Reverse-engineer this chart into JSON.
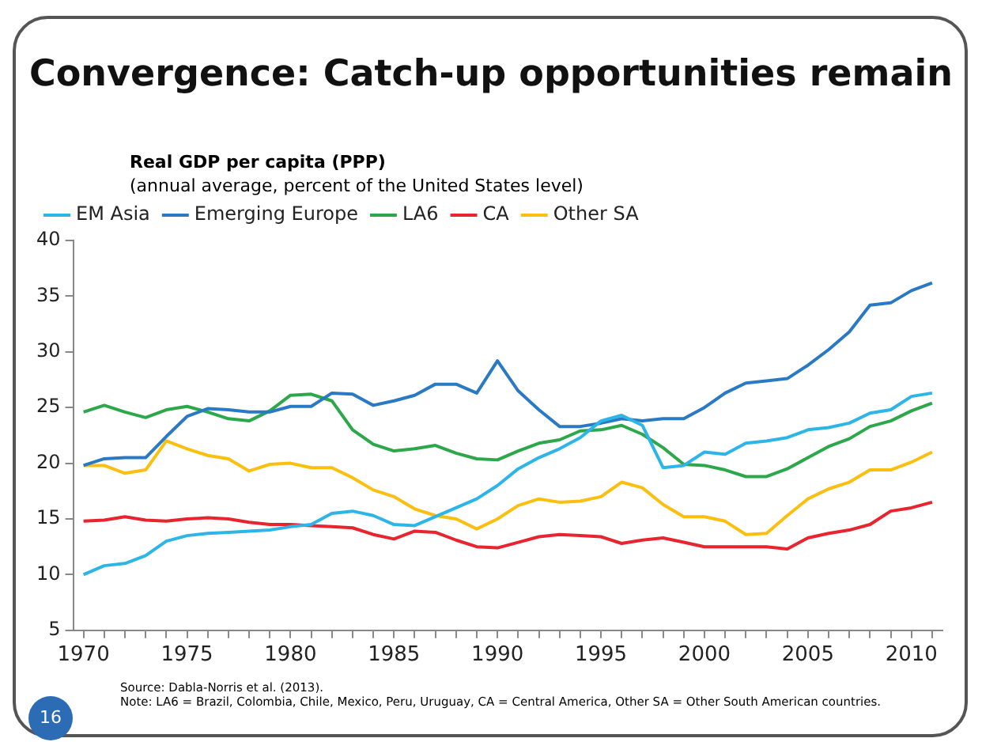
{
  "chart_data": {
    "type": "line",
    "title": "Convergence: Catch-up opportunities remain",
    "subtitle": "Real GDP per capita (PPP)",
    "ylabel": "(annual average, percent of the United States level)",
    "x": [
      1970,
      1971,
      1972,
      1973,
      1974,
      1975,
      1976,
      1977,
      1978,
      1979,
      1980,
      1981,
      1982,
      1983,
      1984,
      1985,
      1986,
      1987,
      1988,
      1989,
      1990,
      1991,
      1992,
      1993,
      1994,
      1995,
      1996,
      1997,
      1998,
      1999,
      2000,
      2001,
      2002,
      2003,
      2004,
      2005,
      2006,
      2007,
      2008,
      2009,
      2010,
      2011
    ],
    "series": [
      {
        "name": "EM Asia",
        "color": "#2eb5e8",
        "values": [
          10,
          10.8,
          11,
          11.7,
          13,
          13.5,
          13.7,
          13.8,
          13.9,
          14,
          14.3,
          14.5,
          15.5,
          15.7,
          15.3,
          14.5,
          14.4,
          15.2,
          16,
          16.8,
          18,
          19.5,
          20.5,
          21.3,
          22.3,
          23.8,
          24.3,
          23.4,
          19.6,
          19.8,
          21,
          20.8,
          21.8,
          22,
          22.3,
          23,
          23.2,
          23.6,
          24.5,
          24.8,
          26,
          26.3
        ]
      },
      {
        "name": "Emerging Europe",
        "color": "#2a79c4",
        "values": [
          19.8,
          20.4,
          20.5,
          20.5,
          22.4,
          24.2,
          24.9,
          24.8,
          24.6,
          24.6,
          25.1,
          25.1,
          26.3,
          26.2,
          25.2,
          25.6,
          26.1,
          27.1,
          27.1,
          26.3,
          29.2,
          26.5,
          24.8,
          23.3,
          23.3,
          23.6,
          24,
          23.8,
          24,
          24,
          25,
          26.3,
          27.2,
          27.4,
          27.6,
          28.8,
          30.2,
          31.8,
          34.2,
          34.4,
          35.5,
          36.2
        ]
      },
      {
        "name": "LA6",
        "color": "#2ca84a",
        "values": [
          24.6,
          25.2,
          24.6,
          24.1,
          24.8,
          25.1,
          24.6,
          24,
          23.8,
          24.7,
          26.1,
          26.2,
          25.6,
          23,
          21.7,
          21.1,
          21.3,
          21.6,
          20.9,
          20.4,
          20.3,
          21.1,
          21.8,
          22.1,
          22.9,
          23,
          23.4,
          22.6,
          21.4,
          19.9,
          19.8,
          19.4,
          18.8,
          18.8,
          19.5,
          20.5,
          21.5,
          22.2,
          23.3,
          23.8,
          24.7,
          25.4
        ]
      },
      {
        "name": "CA",
        "color": "#e8242f",
        "values": [
          14.8,
          14.9,
          15.2,
          14.9,
          14.8,
          15,
          15.1,
          15,
          14.7,
          14.5,
          14.5,
          14.4,
          14.3,
          14.2,
          13.6,
          13.2,
          13.9,
          13.8,
          13.1,
          12.5,
          12.4,
          12.9,
          13.4,
          13.6,
          13.5,
          13.4,
          12.8,
          13.1,
          13.3,
          12.9,
          12.5,
          12.5,
          12.5,
          12.5,
          12.3,
          13.3,
          13.7,
          14,
          14.5,
          15.7,
          16,
          16.5
        ]
      },
      {
        "name": "Other SA",
        "color": "#fbbf10",
        "values": [
          19.8,
          19.8,
          19.1,
          19.4,
          22,
          21.3,
          20.7,
          20.4,
          19.3,
          19.9,
          20,
          19.6,
          19.6,
          18.7,
          17.6,
          17,
          15.9,
          15.3,
          15,
          14.1,
          15,
          16.2,
          16.8,
          16.5,
          16.6,
          17,
          18.3,
          17.8,
          16.3,
          15.2,
          15.2,
          14.8,
          13.6,
          13.7,
          15.3,
          16.8,
          17.7,
          18.3,
          19.4,
          19.4,
          20.1,
          21
        ]
      }
    ],
    "xlim": [
      1969.5,
      2011.5
    ],
    "xticks": [
      1970,
      {
        "value": 1971,
        "label": null
      },
      {
        "value": 1972,
        "label": null
      },
      {
        "value": 1973,
        "label": null
      },
      {
        "value": 1974,
        "label": null
      },
      1975,
      {
        "value": 1976,
        "label": null
      },
      {
        "value": 1977,
        "label": null
      },
      {
        "value": 1978,
        "label": null
      },
      {
        "value": 1979,
        "label": null
      },
      1980,
      {
        "value": 1981,
        "label": null
      },
      {
        "value": 1982,
        "label": null
      },
      {
        "value": 1983,
        "label": null
      },
      {
        "value": 1984,
        "label": null
      },
      1985,
      {
        "value": 1986,
        "label": null
      },
      {
        "value": 1987,
        "label": null
      },
      {
        "value": 1988,
        "label": null
      },
      {
        "value": 1989,
        "label": null
      },
      1990,
      {
        "value": 1991,
        "label": null
      },
      {
        "value": 1992,
        "label": null
      },
      {
        "value": 1993,
        "label": null
      },
      {
        "value": 1994,
        "label": null
      },
      1995,
      {
        "value": 1996,
        "label": null
      },
      {
        "value": 1997,
        "label": null
      },
      {
        "value": 1998,
        "label": null
      },
      {
        "value": 1999,
        "label": null
      },
      2000,
      {
        "value": 2001,
        "label": null
      },
      {
        "value": 2002,
        "label": null
      },
      {
        "value": 2003,
        "label": null
      },
      {
        "value": 2004,
        "label": null
      },
      2005,
      {
        "value": 2006,
        "label": null
      },
      {
        "value": 2007,
        "label": null
      },
      {
        "value": 2008,
        "label": null
      },
      {
        "value": 2009,
        "label": null
      },
      2010,
      {
        "value": 2011,
        "label": null
      }
    ],
    "ylim": [
      5,
      40
    ],
    "yticks": [
      5,
      10,
      15,
      20,
      25,
      30,
      35,
      40
    ],
    "grid": false,
    "legend": "top",
    "marker": "none",
    "line_style": "solid",
    "annotations": [
      "Source: Dabla-Norris et al. (2013).",
      "Note: LA6 = Brazil, Colombia, Chile, Mexico, Peru, Uruguay, CA = Central America, Other SA = Other South American countries.",
      "16"
    ]
  }
}
